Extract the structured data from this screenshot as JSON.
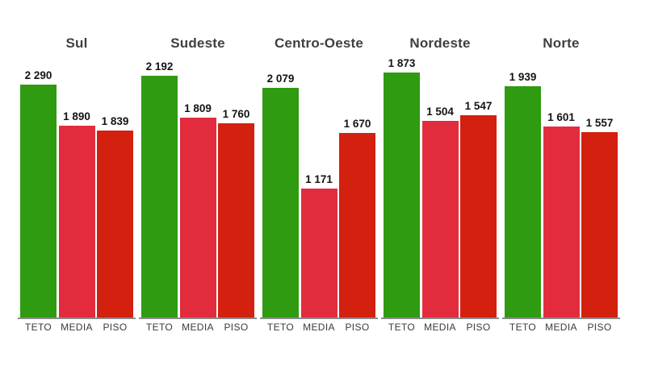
{
  "chart_data": {
    "type": "bar",
    "title": "",
    "legend_position": "none",
    "grid": false,
    "value_format": "space-thousands-separator",
    "categories": [
      "TETO",
      "MEDIA",
      "PISO"
    ],
    "colors": {
      "TETO": "#2F9B11",
      "MEDIA": "#E22C3E",
      "PISO": "#D3200F",
      "baseline": "#8C8C8C",
      "title_text": "#3F3F3F",
      "value_text": "#141414",
      "category_text": "#3B3B3B",
      "background": "#FFFFFF"
    },
    "groups": [
      {
        "title": "Sul",
        "ylim": [
          0,
          2500
        ],
        "values": [
          2290,
          1890,
          1839
        ],
        "value_labels": [
          "2 290",
          "1 890",
          "1 839"
        ]
      },
      {
        "title": "Sudeste",
        "ylim": [
          0,
          2300
        ],
        "values": [
          2192,
          1809,
          1760
        ],
        "value_labels": [
          "2 192",
          "1 809",
          "1 760"
        ]
      },
      {
        "title": "Centro-Oeste",
        "ylim": [
          0,
          2300
        ],
        "values": [
          2079,
          1171,
          1670
        ],
        "value_labels": [
          "2 079",
          "1 171",
          "1 670"
        ]
      },
      {
        "title": "Nordeste",
        "ylim": [
          0,
          1940
        ],
        "values": [
          1873,
          1504,
          1547
        ],
        "value_labels": [
          "1 873",
          "1 504",
          "1 547"
        ]
      },
      {
        "title": "Norte",
        "ylim": [
          0,
          2130
        ],
        "values": [
          1939,
          1601,
          1557
        ],
        "value_labels": [
          "1 939",
          "1 601",
          "1 557"
        ]
      }
    ]
  }
}
